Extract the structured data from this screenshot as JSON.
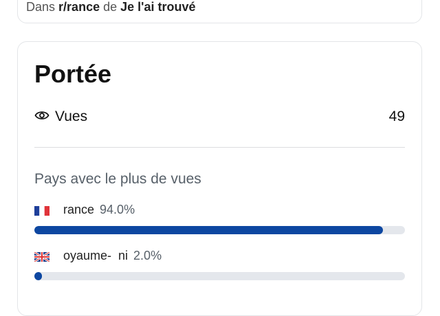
{
  "top_line": {
    "prefix": "Dans",
    "community": "r/rance",
    "middle": "de",
    "flair": "Je l'ai trouvé"
  },
  "reach": {
    "title": "Portée",
    "views_label": "Vues",
    "views_icon": "eye-icon",
    "views_value": "49",
    "countries_heading": "Pays avec le plus de vues",
    "accent_color": "#0d47a1",
    "countries": [
      {
        "flag": "flag-france-icon",
        "name": "rance",
        "percent_label": "94.0%",
        "percent": 94.0
      },
      {
        "flag": "flag-uk-icon",
        "name": "oyaume-  ni",
        "percent_label": "2.0%",
        "percent": 2.0
      }
    ]
  }
}
